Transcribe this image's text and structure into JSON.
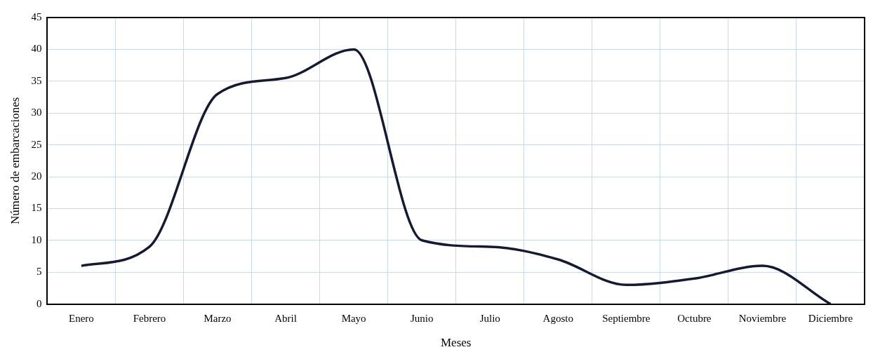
{
  "chart_data": {
    "type": "line",
    "xlabel": "Meses",
    "ylabel": "Número de embarcaciones",
    "categories": [
      "Enero",
      "Febrero",
      "Marzo",
      "Abril",
      "Mayo",
      "Junio",
      "Julio",
      "Agosto",
      "Septiembre",
      "Octubre",
      "Noviembre",
      "Diciembre"
    ],
    "series": [
      {
        "color": "#141a33",
        "values": [
          6,
          9,
          33,
          35.5,
          40,
          10,
          9,
          7,
          3,
          4,
          6,
          0
        ]
      }
    ],
    "ylim": [
      0,
      45
    ],
    "yticks": [
      0,
      5,
      10,
      15,
      20,
      25,
      30,
      35,
      40,
      45
    ],
    "grid": true,
    "legend": false,
    "marker": "none",
    "line_style": "solid"
  }
}
